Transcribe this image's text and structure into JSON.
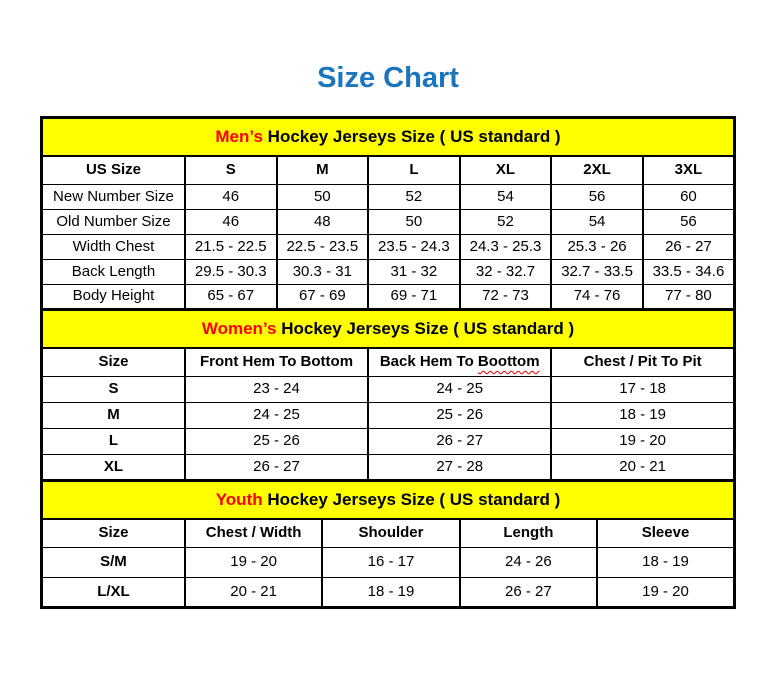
{
  "page_title": "Size Chart",
  "colors": {
    "title_blue": "#1B75BC",
    "banner_background": "#FFFF00",
    "banner_highlight_red": "#FF0000",
    "spellcheck_red": "#E00000",
    "border_black": "#000000"
  },
  "sections": [
    {
      "id": "mens",
      "banner": {
        "highlight": "Men’s",
        "rest": "Hockey Jerseys Size ( US standard )"
      },
      "columns": [
        {
          "label": "US Size"
        },
        {
          "label": "S"
        },
        {
          "label": "M"
        },
        {
          "label": "L"
        },
        {
          "label": "XL"
        },
        {
          "label": "2XL"
        },
        {
          "label": "3XL"
        }
      ],
      "rows": [
        {
          "label": "New Number Size",
          "values": [
            "46",
            "50",
            "52",
            "54",
            "56",
            "60"
          ]
        },
        {
          "label": "Old Number Size",
          "values": [
            "46",
            "48",
            "50",
            "52",
            "54",
            "56"
          ]
        },
        {
          "label": "Width Chest",
          "values": [
            "21.5 - 22.5",
            "22.5 - 23.5",
            "23.5 - 24.3",
            "24.3 - 25.3",
            "25.3 - 26",
            "26 - 27"
          ]
        },
        {
          "label": "Back Length",
          "values": [
            "29.5 - 30.3",
            "30.3 - 31",
            "31 - 32",
            "32 - 32.7",
            "32.7 - 33.5",
            "33.5 - 34.6"
          ]
        },
        {
          "label": "Body Height",
          "values": [
            "65 - 67",
            "67 - 69",
            "69 - 71",
            "72 - 73",
            "74 - 76",
            "77 - 80"
          ]
        }
      ]
    },
    {
      "id": "womens",
      "banner": {
        "highlight": "Women’s",
        "rest": "Hockey Jerseys Size ( US standard )"
      },
      "columns": [
        {
          "label": "Size"
        },
        {
          "label": "Front Hem To Bottom"
        },
        {
          "label": "Back Hem To",
          "squiggle": "Boottom"
        },
        {
          "label": "Chest / Pit To Pit"
        }
      ],
      "rows": [
        {
          "label": "S",
          "values": [
            "23 - 24",
            "24 - 25",
            "17 - 18"
          ]
        },
        {
          "label": "M",
          "values": [
            "24 - 25",
            "25 - 26",
            "18 - 19"
          ]
        },
        {
          "label": "L",
          "values": [
            "25 - 26",
            "26 - 27",
            "19 - 20"
          ]
        },
        {
          "label": "XL",
          "values": [
            "26 - 27",
            "27 - 28",
            "20 - 21"
          ]
        }
      ]
    },
    {
      "id": "youth",
      "banner": {
        "highlight": "Youth",
        "rest": "Hockey Jerseys Size ( US standard )"
      },
      "columns": [
        {
          "label": "Size"
        },
        {
          "label": "Chest / Width"
        },
        {
          "label": "Shoulder"
        },
        {
          "label": "Length"
        },
        {
          "label": "Sleeve"
        }
      ],
      "rows": [
        {
          "label": "S/M",
          "values": [
            "19 - 20",
            "16 - 17",
            "24 - 26",
            "18 - 19"
          ]
        },
        {
          "label": "L/XL",
          "values": [
            "20 - 21",
            "18 - 19",
            "26 - 27",
            "19 - 20"
          ]
        }
      ]
    }
  ]
}
